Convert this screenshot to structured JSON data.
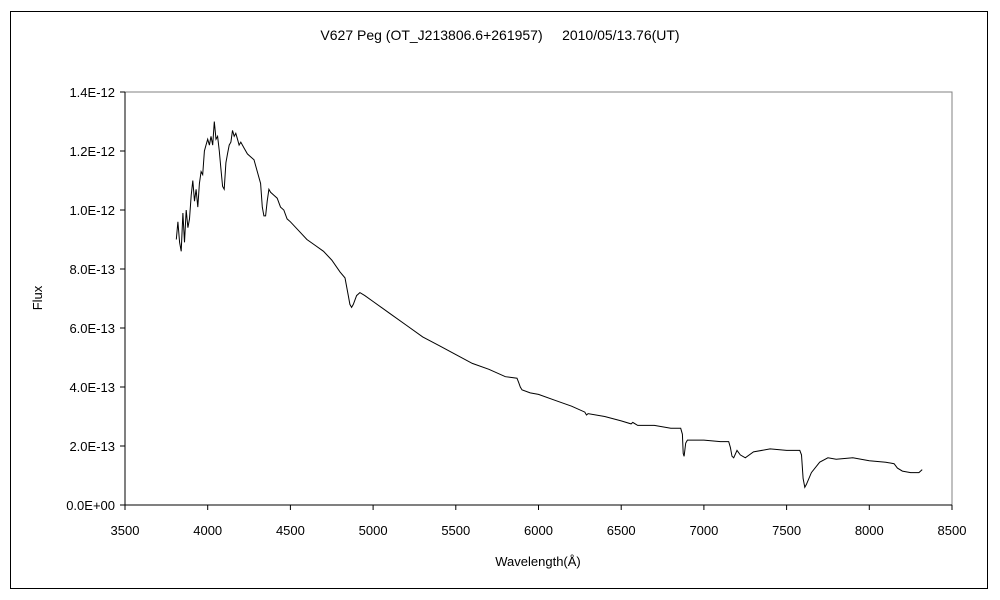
{
  "chart_data": {
    "type": "line",
    "title": "V627 Peg (OT_J213806.6+261957)     2010/05/13.76(UT)",
    "xlabel": "Wavelength(Å)",
    "ylabel": "Flux",
    "xlim": [
      3500,
      8500
    ],
    "ylim": [
      0,
      1.4e-12
    ],
    "x_ticks": [
      3500,
      4000,
      4500,
      5000,
      5500,
      6000,
      6500,
      7000,
      7500,
      8000,
      8500
    ],
    "y_ticks": [
      "0.0E+00",
      "2.0E-13",
      "4.0E-13",
      "6.0E-13",
      "8.0E-13",
      "1.0E-12",
      "1.2E-12",
      "1.4E-12"
    ],
    "grid": false,
    "legend": "none",
    "series": [
      {
        "color": "#000000",
        "x": [
          3810,
          3820,
          3830,
          3840,
          3850,
          3860,
          3870,
          3880,
          3890,
          3900,
          3910,
          3920,
          3930,
          3940,
          3950,
          3960,
          3970,
          3980,
          3990,
          4000,
          4010,
          4020,
          4030,
          4040,
          4050,
          4060,
          4070,
          4080,
          4090,
          4100,
          4110,
          4120,
          4130,
          4140,
          4150,
          4160,
          4170,
          4180,
          4190,
          4200,
          4220,
          4240,
          4260,
          4280,
          4300,
          4320,
          4330,
          4340,
          4350,
          4360,
          4370,
          4380,
          4400,
          4420,
          4440,
          4460,
          4480,
          4500,
          4550,
          4600,
          4650,
          4700,
          4750,
          4800,
          4830,
          4850,
          4860,
          4870,
          4880,
          4900,
          4920,
          4950,
          5000,
          5100,
          5200,
          5300,
          5400,
          5500,
          5600,
          5700,
          5800,
          5870,
          5880,
          5890,
          5900,
          5950,
          6000,
          6100,
          6200,
          6280,
          6290,
          6300,
          6400,
          6500,
          6560,
          6570,
          6600,
          6700,
          6800,
          6860,
          6870,
          6875,
          6880,
          6890,
          6900,
          7000,
          7100,
          7150,
          7160,
          7170,
          7180,
          7200,
          7220,
          7250,
          7300,
          7400,
          7500,
          7560,
          7580,
          7590,
          7600,
          7610,
          7620,
          7650,
          7700,
          7750,
          7800,
          7900,
          8000,
          8100,
          8150,
          8170,
          8200,
          8250,
          8300,
          8320
        ],
        "y": [
          9e-13,
          9.6e-13,
          8.9e-13,
          8.6e-13,
          9.9e-13,
          8.9e-13,
          1e-12,
          9.4e-13,
          9.7e-13,
          1.05e-12,
          1.1e-12,
          1.03e-12,
          1.07e-12,
          1.01e-12,
          1.09e-12,
          1.13e-12,
          1.12e-12,
          1.2e-12,
          1.22e-12,
          1.24e-12,
          1.22e-12,
          1.25e-12,
          1.22e-12,
          1.3e-12,
          1.24e-12,
          1.25e-12,
          1.2e-12,
          1.14e-12,
          1.08e-12,
          1.07e-12,
          1.16e-12,
          1.19e-12,
          1.22e-12,
          1.23e-12,
          1.27e-12,
          1.25e-12,
          1.26e-12,
          1.24e-12,
          1.22e-12,
          1.23e-12,
          1.21e-12,
          1.19e-12,
          1.18e-12,
          1.17e-12,
          1.13e-12,
          1.09e-12,
          1.01e-12,
          9.8e-13,
          9.8e-13,
          1.03e-12,
          1.07e-12,
          1.06e-12,
          1.05e-12,
          1.04e-12,
          1.01e-12,
          1e-12,
          9.7e-13,
          9.6e-13,
          9.3e-13,
          9e-13,
          8.8e-13,
          8.6e-13,
          8.3e-13,
          7.9e-13,
          7.7e-13,
          7.1e-13,
          6.8e-13,
          6.7e-13,
          6.8e-13,
          7.1e-13,
          7.2e-13,
          7.1e-13,
          6.9e-13,
          6.5e-13,
          6.1e-13,
          5.7e-13,
          5.4e-13,
          5.1e-13,
          4.8e-13,
          4.6e-13,
          4.35e-13,
          4.3e-13,
          4.15e-13,
          4e-13,
          3.9e-13,
          3.8e-13,
          3.75e-13,
          3.55e-13,
          3.35e-13,
          3.15e-13,
          3.05e-13,
          3.1e-13,
          3e-13,
          2.85e-13,
          2.75e-13,
          2.8e-13,
          2.7e-13,
          2.7e-13,
          2.6e-13,
          2.6e-13,
          2.4e-13,
          1.75e-13,
          1.65e-13,
          2.1e-13,
          2.2e-13,
          2.2e-13,
          2.15e-13,
          2.15e-13,
          1.95e-13,
          1.65e-13,
          1.6e-13,
          1.85e-13,
          1.7e-13,
          1.6e-13,
          1.8e-13,
          1.9e-13,
          1.85e-13,
          1.85e-13,
          1.85e-13,
          1.7e-13,
          9e-14,
          6e-14,
          7e-14,
          1.1e-13,
          1.45e-13,
          1.6e-13,
          1.55e-13,
          1.6e-13,
          1.5e-13,
          1.45e-13,
          1.4e-13,
          1.25e-13,
          1.15e-13,
          1.1e-13,
          1.1e-13,
          1.2e-13
        ]
      }
    ]
  }
}
